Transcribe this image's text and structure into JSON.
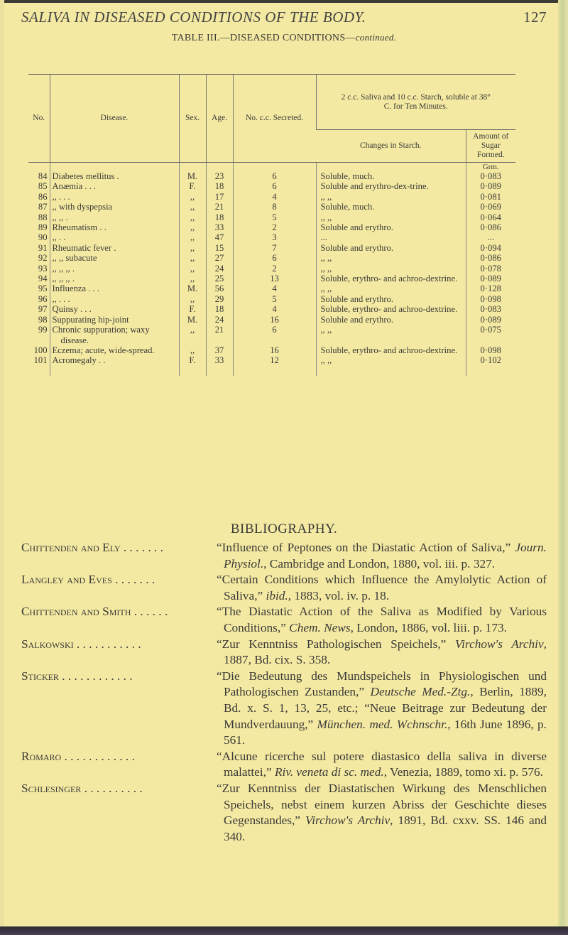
{
  "running_head": {
    "title": "SALIVA IN DISEASED CONDITIONS OF THE BODY.",
    "page_number": "127"
  },
  "table": {
    "title": "TABLE III.—DISEASED CONDITIONS—",
    "title_suffix": "continued.",
    "headers": {
      "no": "No.",
      "disease": "Disease.",
      "sex": "Sex.",
      "age": "Age.",
      "secreted": "No. c.c. Secreted.",
      "group": "2 c.c. Saliva and 10 c.c. Starch, soluble at 38° C. for Ten Minutes.",
      "changes": "Changes in Starch.",
      "amount": "Amount of Sugar Formed."
    },
    "unit": "Grm.",
    "rows": [
      {
        "no": "84",
        "disease": "Diabetes mellitus  .",
        "sex": "M.",
        "age": "23",
        "cc": "6",
        "changes": "Soluble, much.",
        "amount": "0·083"
      },
      {
        "no": "85",
        "disease": "Anæmia  .  .  .",
        "sex": "F.",
        "age": "18",
        "cc": "6",
        "changes": "Soluble and erythro-dex-trine.",
        "amount": "0·089"
      },
      {
        "no": "86",
        "disease": ",,  .  .  .",
        "sex": ",,",
        "age": "17",
        "cc": "4",
        "changes": ",,  ,,",
        "amount": "0·081"
      },
      {
        "no": "87",
        "disease": ",,  with dyspepsia",
        "sex": ",,",
        "age": "21",
        "cc": "8",
        "changes": "Soluble, much.",
        "amount": "0·069"
      },
      {
        "no": "88",
        "disease": ",,  ,,  .",
        "sex": ",,",
        "age": "18",
        "cc": "5",
        "changes": ",,  ,,",
        "amount": "0·064"
      },
      {
        "no": "89",
        "disease": "Rheumatism  .  .",
        "sex": ",,",
        "age": "33",
        "cc": "2",
        "changes": "Soluble and erythro.",
        "amount": "0·086"
      },
      {
        "no": "90",
        "disease": ",,  .  .",
        "sex": ",,",
        "age": "47",
        "cc": "3",
        "changes": "...",
        "amount": "..."
      },
      {
        "no": "91",
        "disease": "Rheumatic fever  .",
        "sex": ",,",
        "age": "15",
        "cc": "7",
        "changes": "Soluble and erythro.",
        "amount": "0·094"
      },
      {
        "no": "92",
        "disease": ",,  ,, subacute",
        "sex": ",,",
        "age": "27",
        "cc": "6",
        "changes": ",,  ,,",
        "amount": "0·086"
      },
      {
        "no": "93",
        "disease": ",,  ,,  ,,  .",
        "sex": ",,",
        "age": "24",
        "cc": "2",
        "changes": ",,  ,,",
        "amount": "0·078"
      },
      {
        "no": "94",
        "disease": ",,  ,,  ,,  .",
        "sex": ",,",
        "age": "25",
        "cc": "13",
        "changes": "Soluble, erythro- and achroo-dextrine.",
        "amount": "0·089"
      },
      {
        "no": "95",
        "disease": "Influenza  .  .  .",
        "sex": "M.",
        "age": "56",
        "cc": "4",
        "changes": ",,  ,,",
        "amount": "0·128"
      },
      {
        "no": "96",
        "disease": ",,  .  .  .",
        "sex": ",,",
        "age": "29",
        "cc": "5",
        "changes": "Soluble and erythro.",
        "amount": "0·098"
      },
      {
        "no": "97",
        "disease": "Quinsy  .  .  .",
        "sex": "F.",
        "age": "18",
        "cc": "4",
        "changes": "Soluble, erythro- and achroo-dextrine.",
        "amount": "0·083"
      },
      {
        "no": "98",
        "disease": "Suppurating hip-joint",
        "sex": "M.",
        "age": "24",
        "cc": "16",
        "changes": "Soluble and erythro.",
        "amount": "0·089"
      },
      {
        "no": "99",
        "disease": "Chronic suppuration; waxy disease.",
        "sex": ",,",
        "age": "21",
        "cc": "6",
        "changes": ",,  ,,",
        "amount": "0·075"
      },
      {
        "no": "100",
        "disease": "Eczema; acute, wide-spread.",
        "sex": ",,",
        "age": "37",
        "cc": "16",
        "changes": "Soluble, erythro- and achroo-dextrine.",
        "amount": "0·098"
      },
      {
        "no": "101",
        "disease": "Acromegaly  .  .",
        "sex": "F.",
        "age": "33",
        "cc": "12",
        "changes": ",,  ,,",
        "amount": "0·102"
      }
    ]
  },
  "bibliography": {
    "title": "BIBLIOGRAPHY.",
    "entries": [
      {
        "author": "Chittenden and Ely . . . . . . .",
        "segments": [
          {
            "t": "“Influence of Peptones on the Diastatic Action of Saliva,” "
          },
          {
            "t": "Journ. Physiol.",
            "i": true
          },
          {
            "t": ", Cambridge and London, 1880, vol. iii. p. 327."
          }
        ]
      },
      {
        "author": "Langley and Eves . . . . . . .",
        "segments": [
          {
            "t": "“Certain Conditions which Influence the Amylolytic Action of Saliva,” "
          },
          {
            "t": "ibid.",
            "i": true
          },
          {
            "t": ", 1883, vol. iv. p. 18."
          }
        ]
      },
      {
        "author": "Chittenden and Smith . . . . . .",
        "segments": [
          {
            "t": "“The Diastatic Action of the Saliva as Modified by Various Conditions,” "
          },
          {
            "t": "Chem. News",
            "i": true
          },
          {
            "t": ", London, 1886, vol. liii. p. 173."
          }
        ]
      },
      {
        "author": "Salkowski . . . . . . . . . . .",
        "segments": [
          {
            "t": "“Zur Kenntniss Pathologischen Speichels,” "
          },
          {
            "t": "Virchow's Archiv",
            "i": true
          },
          {
            "t": ", 1887, Bd. cix. S. 358."
          }
        ]
      },
      {
        "author": "Sticker . . . . . . . . . . . .",
        "segments": [
          {
            "t": "“Die Bedeutung des Mundspeichels in Physiologischen und Pathologischen Zustanden,” "
          },
          {
            "t": "Deutsche Med.-Ztg.",
            "i": true
          },
          {
            "t": ", Berlin, 1889, Bd. x. S. 1, 13, 25, etc.; “Neue Beitrage zur Bedeutung der Mundverdauung,” "
          },
          {
            "t": "München. med. Wchnschr.",
            "i": true
          },
          {
            "t": ", 16th June 1896, p. 561."
          }
        ]
      },
      {
        "author": "Romaro . . . . . . . . . . . .",
        "segments": [
          {
            "t": "“Alcune ricerche sul potere diastasico della saliva in diverse malattei,” "
          },
          {
            "t": "Riv. veneta di sc. med.",
            "i": true
          },
          {
            "t": ", Venezia, 1889, tomo xi. p. 576."
          }
        ]
      },
      {
        "author": "Schlesinger . . . . . . . . . .",
        "segments": [
          {
            "t": "“Zur Kenntniss der Diastatischen Wirkung des Menschlichen Speichels, nebst einem kurzen Abriss der Geschichte dieses Gegenstandes,” "
          },
          {
            "t": "Virchow's Archiv",
            "i": true
          },
          {
            "t": ", 1891, Bd. cxxv. SS. 146 and 340."
          }
        ]
      }
    ]
  }
}
